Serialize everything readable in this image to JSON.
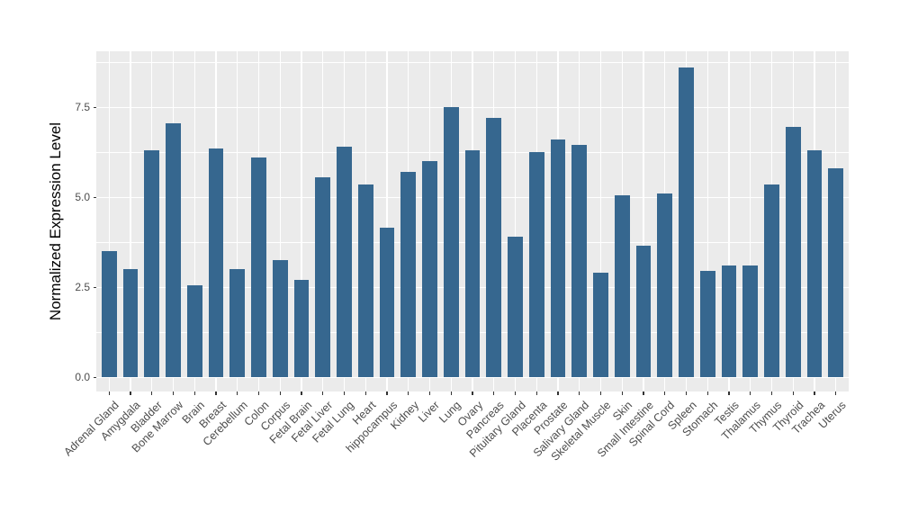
{
  "chart_data": {
    "type": "bar",
    "title": "",
    "xlabel": "",
    "ylabel": "Normalized Expression Level",
    "categories": [
      "Adrenal Gland",
      "Amygdala",
      "Bladder",
      "Bone Marrow",
      "Brain",
      "Breast",
      "Cerebellum",
      "Colon",
      "Corpus",
      "Fetal Brain",
      "Fetal Liver",
      "Fetal Lung",
      "Heart",
      "hippocampus",
      "Kidney",
      "Liver",
      "Lung",
      "Ovary",
      "Pancreas",
      "Pituitary Gland",
      "Placenta",
      "Prostate",
      "Salivary Gland",
      "Skeletal Muscle",
      "Skin",
      "Small Intestine",
      "Spinal Cord",
      "Spleen",
      "Stomach",
      "Testis",
      "Thalamus",
      "Thymus",
      "Thyroid",
      "Trachea",
      "Uterus"
    ],
    "values": [
      3.5,
      3.0,
      6.3,
      7.05,
      2.55,
      6.35,
      3.0,
      6.1,
      3.25,
      2.7,
      5.55,
      6.4,
      5.35,
      4.15,
      5.7,
      6.0,
      7.5,
      6.3,
      7.2,
      3.9,
      6.25,
      6.6,
      6.45,
      2.9,
      5.05,
      3.65,
      5.1,
      8.6,
      2.95,
      3.1,
      3.1,
      5.35,
      6.95,
      6.3,
      5.8
    ],
    "yticks": [
      0,
      2.5,
      5,
      7.5
    ],
    "ytick_labels": [
      "0.0",
      "2.5",
      "5.0",
      "7.5"
    ],
    "minor_yticks": [
      1.25,
      3.75,
      6.25,
      8.75
    ],
    "ylim": [
      -0.39,
      9.06
    ],
    "grid": "major+minor, white on gray panel",
    "legend": "none",
    "colors": {
      "bar": "#36678F",
      "panel_bg": "#EBEBEB",
      "grid": "#FFFFFF",
      "axis_text": "#4D4D4D",
      "tick_mark": "#333333",
      "axis_title": "#000000",
      "figure_bg": "#FFFFFF"
    }
  }
}
